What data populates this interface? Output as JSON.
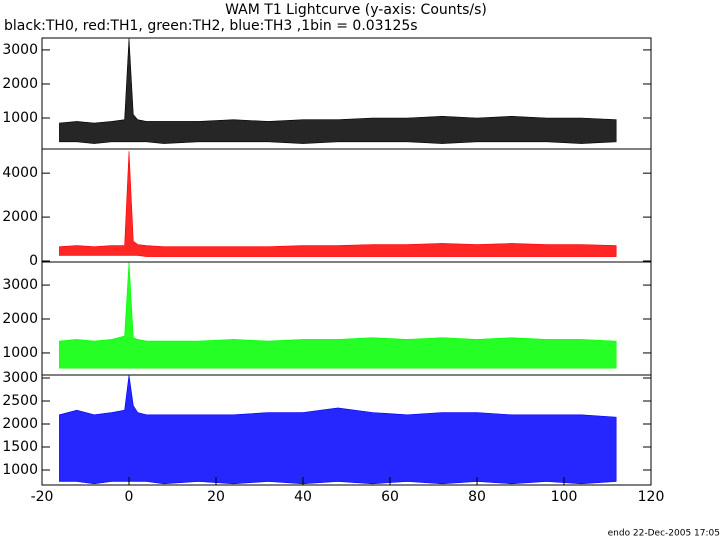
{
  "chart_data": [
    {
      "type": "band",
      "title": "WAM T1 Lightcurve (y-axis: Counts/s)",
      "subtitle": "black:TH0, red:TH1, green:TH2, blue:TH3 ,1bin = 0.03125s",
      "color": "#000000",
      "x": [
        -16,
        -12,
        -8,
        -4,
        -1,
        0,
        1,
        2,
        4,
        8,
        16,
        24,
        32,
        40,
        48,
        56,
        64,
        72,
        80,
        88,
        96,
        104,
        112
      ],
      "upper": [
        850,
        900,
        850,
        900,
        950,
        3350,
        1100,
        950,
        900,
        900,
        900,
        950,
        900,
        950,
        950,
        1000,
        1000,
        1050,
        1000,
        1050,
        1000,
        1000,
        950
      ],
      "lower": [
        300,
        300,
        250,
        300,
        300,
        300,
        300,
        300,
        300,
        250,
        300,
        300,
        300,
        250,
        300,
        300,
        300,
        250,
        300,
        300,
        300,
        250,
        300
      ],
      "xlim": [
        -20,
        120
      ],
      "ylim": [
        90,
        3350
      ],
      "yticks": [
        1000,
        2000,
        3000
      ]
    },
    {
      "type": "band",
      "color": "#ff0000",
      "x": [
        -16,
        -12,
        -8,
        -4,
        -1,
        0,
        1,
        2,
        4,
        8,
        16,
        24,
        32,
        40,
        48,
        56,
        64,
        72,
        80,
        88,
        96,
        104,
        112
      ],
      "upper": [
        650,
        700,
        650,
        700,
        700,
        5000,
        900,
        750,
        700,
        650,
        650,
        650,
        650,
        700,
        700,
        750,
        750,
        800,
        750,
        800,
        750,
        750,
        700
      ],
      "lower": [
        250,
        250,
        250,
        250,
        250,
        250,
        250,
        250,
        200,
        200,
        200,
        200,
        200,
        200,
        200,
        200,
        200,
        200,
        200,
        200,
        200,
        200,
        200
      ],
      "xlim": [
        -20,
        120
      ],
      "ylim": [
        -45,
        5100
      ],
      "yticks": [
        0,
        2000,
        4000
      ]
    },
    {
      "type": "band",
      "color": "#00ff00",
      "x": [
        -16,
        -12,
        -8,
        -4,
        -1,
        0,
        1,
        2,
        4,
        8,
        16,
        24,
        32,
        40,
        48,
        56,
        64,
        72,
        80,
        88,
        96,
        104,
        112
      ],
      "upper": [
        1350,
        1400,
        1350,
        1400,
        1500,
        3680,
        1450,
        1400,
        1350,
        1350,
        1350,
        1400,
        1350,
        1400,
        1400,
        1450,
        1400,
        1450,
        1400,
        1450,
        1400,
        1400,
        1350
      ],
      "lower": [
        550,
        550,
        550,
        550,
        550,
        550,
        550,
        550,
        550,
        550,
        550,
        550,
        550,
        550,
        550,
        550,
        550,
        550,
        550,
        550,
        550,
        550,
        550
      ],
      "xlim": [
        -20,
        120
      ],
      "ylim": [
        350,
        3680
      ],
      "yticks": [
        1000,
        2000,
        3000
      ]
    },
    {
      "type": "band",
      "color": "#0000ff",
      "x": [
        -16,
        -12,
        -8,
        -4,
        -1,
        0,
        1,
        2,
        4,
        8,
        16,
        24,
        32,
        40,
        48,
        56,
        64,
        72,
        80,
        88,
        96,
        104,
        112
      ],
      "upper": [
        2200,
        2300,
        2200,
        2250,
        2300,
        3065,
        2400,
        2250,
        2200,
        2200,
        2200,
        2200,
        2250,
        2250,
        2350,
        2250,
        2200,
        2250,
        2250,
        2200,
        2200,
        2200,
        2150
      ],
      "lower": [
        750,
        750,
        700,
        750,
        750,
        750,
        750,
        750,
        750,
        700,
        750,
        700,
        750,
        700,
        750,
        700,
        750,
        700,
        750,
        700,
        750,
        700,
        750
      ],
      "xlim": [
        -20,
        120
      ],
      "ylim": [
        674,
        3065
      ],
      "yticks": [
        1000,
        1500,
        2000,
        2500,
        3000
      ],
      "xticks": [
        -20,
        0,
        20,
        40,
        60,
        80,
        100,
        120
      ]
    }
  ],
  "footer": "endo 22-Dec-2005 17:05"
}
